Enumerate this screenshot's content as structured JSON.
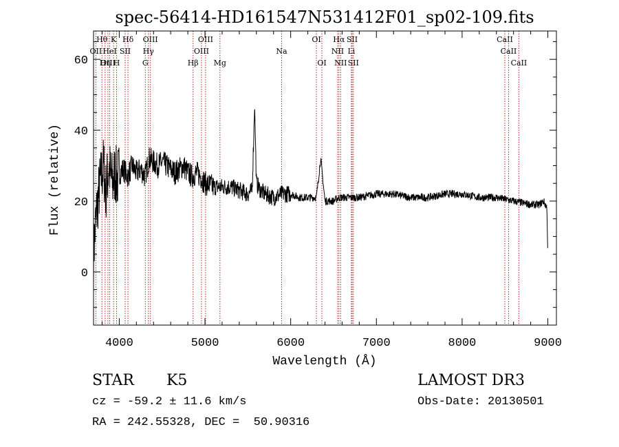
{
  "chart_data": {
    "type": "line",
    "title": "spec-56414-HD161547N531412F01_sp02-109.fits",
    "xlabel": "Wavelength (Å)",
    "ylabel": "Flux (relative)",
    "xlim": [
      3700,
      9100
    ],
    "ylim": [
      -15,
      68
    ],
    "x_ticks": [
      4000,
      5000,
      6000,
      7000,
      8000,
      9000
    ],
    "y_ticks": [
      0,
      20,
      40,
      60
    ],
    "x_range_data": [
      3700,
      9000
    ],
    "series": [
      {
        "name": "flux",
        "x": [
          3700,
          3725,
          3750,
          3775,
          3800,
          3820,
          3840,
          3860,
          3880,
          3900,
          3925,
          3950,
          3975,
          4000,
          4050,
          4100,
          4150,
          4200,
          4250,
          4300,
          4350,
          4400,
          4450,
          4500,
          4550,
          4600,
          4650,
          4700,
          4750,
          4800,
          4850,
          4900,
          4950,
          5000,
          5100,
          5200,
          5300,
          5400,
          5500,
          5550,
          5580,
          5600,
          5650,
          5700,
          5800,
          5900,
          6000,
          6100,
          6200,
          6300,
          6350,
          6400,
          6500,
          6560,
          6600,
          6700,
          6800,
          7000,
          7200,
          7400,
          7600,
          7800,
          8000,
          8200,
          8400,
          8600,
          8800,
          8900,
          8950,
          8990,
          9000
        ],
        "y": [
          5,
          14,
          20,
          25,
          28,
          30,
          22,
          26,
          30,
          27,
          25,
          28,
          26,
          28,
          29,
          27,
          30,
          28,
          29,
          27,
          32,
          31,
          30,
          31,
          30,
          29,
          28,
          29,
          30,
          28,
          27,
          28,
          27,
          25,
          24,
          24,
          24,
          23,
          22,
          23,
          47,
          25,
          23,
          22,
          21,
          22,
          22,
          21,
          21,
          21,
          32,
          20,
          20,
          21,
          21,
          21,
          21,
          22,
          22,
          21,
          21,
          22,
          22,
          21,
          21,
          20,
          19,
          19,
          20,
          18,
          4
        ]
      }
    ],
    "line_markers": [
      {
        "name": "OII",
        "wavelength": 3727,
        "row": 2
      },
      {
        "name": "Hθ",
        "wavelength": 3798,
        "row": 1
      },
      {
        "name": "OIII",
        "wavelength": 3868,
        "row": 3
      },
      {
        "name": "Hη",
        "wavelength": 3835,
        "row": 3
      },
      {
        "name": "HeI",
        "wavelength": 3889,
        "row": 2
      },
      {
        "name": "K",
        "wavelength": 3934,
        "row": 1
      },
      {
        "name": "H",
        "wavelength": 3969,
        "row": 3
      },
      {
        "name": "SII",
        "wavelength": 4069,
        "row": 2
      },
      {
        "name": "Hδ",
        "wavelength": 4102,
        "row": 1
      },
      {
        "name": "OIII",
        "wavelength": 4363,
        "row": 1
      },
      {
        "name": "Hγ",
        "wavelength": 4340,
        "row": 2
      },
      {
        "name": "G",
        "wavelength": 4304,
        "row": 3
      },
      {
        "name": "Hβ",
        "wavelength": 4861,
        "row": 3
      },
      {
        "name": "OIII",
        "wavelength": 5007,
        "row": 1
      },
      {
        "name": "OIII",
        "wavelength": 4959,
        "row": 2
      },
      {
        "name": "Mg",
        "wavelength": 5175,
        "row": 3
      },
      {
        "name": "Na",
        "wavelength": 5894,
        "row": 2
      },
      {
        "name": "OI",
        "wavelength": 6300,
        "row": 1
      },
      {
        "name": "OI",
        "wavelength": 6364,
        "row": 3
      },
      {
        "name": "Hα",
        "wavelength": 6563,
        "row": 1
      },
      {
        "name": "NII",
        "wavelength": 6548,
        "row": 2
      },
      {
        "name": "NII",
        "wavelength": 6583,
        "row": 3
      },
      {
        "name": "SII",
        "wavelength": 6717,
        "row": 1
      },
      {
        "name": "Li",
        "wavelength": 6708,
        "row": 2
      },
      {
        "name": "SII",
        "wavelength": 6731,
        "row": 3
      },
      {
        "name": "CaII",
        "wavelength": 8498,
        "row": 1
      },
      {
        "name": "CaII",
        "wavelength": 8542,
        "row": 2
      },
      {
        "name": "CaII",
        "wavelength": 8662,
        "row": 3
      }
    ]
  },
  "info": {
    "object_class": "STAR",
    "subclass": "K5",
    "survey": "LAMOST DR3",
    "redshift": "cz = -59.2 ± 11.6 km/s",
    "obs_date": "Obs-Date: 20130501",
    "coords": "RA = 242.55328, DEC =  50.90316"
  },
  "colors": {
    "line": "#000000",
    "marker": "#b22222",
    "background": "#ffffff"
  }
}
